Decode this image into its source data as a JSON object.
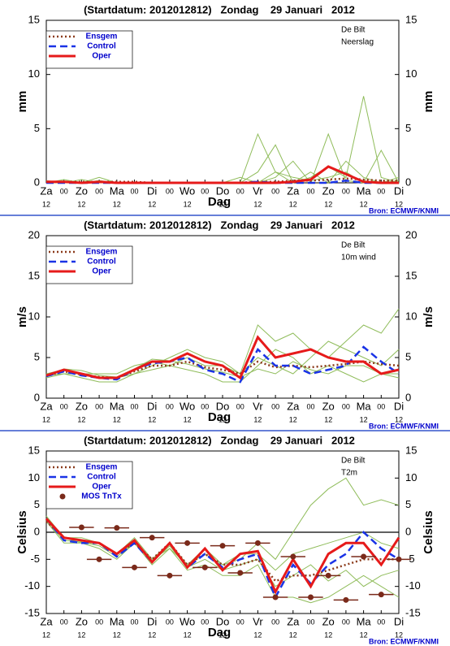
{
  "chart_data": [
    {
      "type": "line",
      "title": "(Startdatum: 2012012812)   Zondag    29 Januari   2012",
      "location": "De Bilt",
      "variable": "Neerslag",
      "ylabel": "mm",
      "xlabel": "Dag",
      "source": "Bron: ECMWF/KNMI",
      "categories": [
        "Za",
        "00",
        "Zo",
        "00",
        "Ma",
        "00",
        "Di",
        "00",
        "Wo",
        "00",
        "Do",
        "00",
        "Vr",
        "00",
        "Za",
        "00",
        "Zo",
        "00",
        "Ma",
        "00",
        "Di"
      ],
      "sub_labels": [
        "12",
        "12",
        "12",
        "12",
        "12",
        "12",
        "12",
        "12",
        "12",
        "12",
        "12"
      ],
      "ylim": [
        0,
        15
      ],
      "yticks": [
        0,
        5,
        10,
        15
      ],
      "zero_line": false,
      "members": {
        "color": "#8fbc5a",
        "values": [
          [
            0,
            0.3,
            0,
            0.2,
            0,
            0,
            0,
            0,
            0,
            0,
            0,
            0,
            4.5,
            1,
            0.5,
            0.2,
            0.5,
            1,
            0,
            0,
            0.2
          ],
          [
            0,
            0,
            0,
            0.5,
            0,
            0,
            0,
            0,
            0,
            0,
            0,
            0,
            1,
            3.5,
            0,
            0.5,
            1.5,
            0.5,
            8,
            0.5,
            0
          ],
          [
            0,
            0,
            0,
            0,
            0,
            0,
            0,
            0,
            0,
            0,
            0,
            0,
            0,
            0.5,
            2,
            0,
            4.5,
            0.2,
            0,
            3,
            0
          ],
          [
            0.2,
            0,
            0.3,
            0,
            0,
            0,
            0,
            0,
            0,
            0,
            0,
            0.5,
            0,
            1,
            0,
            1,
            0,
            2,
            0.5,
            0,
            0.5
          ]
        ]
      },
      "series": [
        {
          "name": "Ensgem",
          "color": "#8b3a1a",
          "style": "dotted",
          "values": [
            0.1,
            0.1,
            0.1,
            0.1,
            0.1,
            0.1,
            0,
            0,
            0,
            0,
            0,
            0,
            0.1,
            0.1,
            0.2,
            0.2,
            0.3,
            0.4,
            0.3,
            0.2,
            0.2
          ]
        },
        {
          "name": "Control",
          "color": "#1a33e6",
          "style": "dashed",
          "values": [
            0,
            0,
            0,
            0,
            0,
            0,
            0,
            0,
            0,
            0,
            0,
            0,
            0.1,
            0,
            0,
            0,
            0,
            0.2,
            0,
            0,
            0
          ]
        },
        {
          "name": "Oper",
          "color": "#e61a1a",
          "style": "solid",
          "values": [
            0.1,
            0.1,
            0,
            0.1,
            0,
            0,
            0,
            0,
            0,
            0,
            0,
            0,
            0,
            0,
            0.1,
            0.3,
            1.5,
            0.8,
            0.1,
            0,
            0
          ]
        }
      ]
    },
    {
      "type": "line",
      "title": "(Startdatum: 2012012812)   Zondag    29 Januari   2012",
      "location": "De Bilt",
      "variable": "10m wind",
      "ylabel": "m/s",
      "xlabel": "Dag",
      "source": "Bron: ECMWF/KNMI",
      "categories": [
        "Za",
        "00",
        "Zo",
        "00",
        "Ma",
        "00",
        "Di",
        "00",
        "Wo",
        "00",
        "Do",
        "00",
        "Vr",
        "00",
        "Za",
        "00",
        "Zo",
        "00",
        "Ma",
        "00",
        "Di"
      ],
      "sub_labels": [
        "12",
        "12",
        "12",
        "12",
        "12",
        "12",
        "12",
        "12",
        "12",
        "12",
        "12"
      ],
      "ylim": [
        0,
        20
      ],
      "yticks": [
        0,
        5,
        10,
        15,
        20
      ],
      "zero_line": false,
      "members": {
        "color": "#8fbc5a",
        "values": [
          [
            2.5,
            3,
            2.5,
            2,
            2,
            3,
            4,
            5,
            6,
            5,
            4.5,
            3,
            9,
            7,
            8,
            6,
            5,
            7,
            9,
            8,
            11
          ],
          [
            3,
            3.5,
            3,
            3,
            3,
            4,
            4.5,
            4,
            3.5,
            3,
            2,
            2,
            4,
            6,
            5,
            3,
            4,
            3,
            2,
            3,
            2.5
          ],
          [
            2.8,
            3,
            3,
            2.5,
            2.5,
            3,
            3.5,
            4,
            5,
            4,
            4,
            3,
            5,
            4,
            3,
            5,
            7,
            6,
            5,
            4,
            6
          ],
          [
            2.6,
            3.6,
            3.4,
            2.8,
            2.6,
            3.6,
            4.8,
            4.6,
            4.2,
            3.6,
            3.2,
            2.6,
            3.6,
            3,
            4.5,
            3.5,
            3,
            4,
            4,
            3,
            3
          ]
        ]
      },
      "series": [
        {
          "name": "Ensgem",
          "color": "#8b3a1a",
          "style": "dotted",
          "values": [
            2.7,
            3.3,
            2.9,
            2.6,
            2.5,
            3.3,
            4,
            4,
            4.5,
            3.8,
            3.5,
            3,
            4.5,
            3.8,
            4,
            3.8,
            4,
            4.2,
            4.5,
            4.2,
            4
          ]
        },
        {
          "name": "Control",
          "color": "#1a33e6",
          "style": "dashed",
          "values": [
            2.7,
            3.3,
            2.8,
            2.5,
            2.3,
            3.5,
            4.3,
            4.5,
            5,
            3.5,
            3,
            2,
            6,
            4,
            4,
            3,
            3.5,
            4,
            6.3,
            4.5,
            3
          ]
        },
        {
          "name": "Oper",
          "color": "#e61a1a",
          "style": "solid",
          "values": [
            2.8,
            3.5,
            3,
            2.5,
            2.5,
            3.5,
            4.5,
            4.5,
            5.5,
            4.5,
            4,
            2.5,
            7.5,
            5,
            5.5,
            6,
            5,
            4.5,
            4.5,
            3,
            3.5
          ]
        }
      ]
    },
    {
      "type": "line",
      "title": "(Startdatum: 2012012812)   Zondag    29 Januari   2012",
      "location": "De Bilt",
      "variable": "T2m",
      "ylabel": "Celsius",
      "xlabel": "Dag",
      "source": "Bron: ECMWF/KNMI",
      "categories": [
        "Za",
        "00",
        "Zo",
        "00",
        "Ma",
        "00",
        "Di",
        "00",
        "Wo",
        "00",
        "Do",
        "00",
        "Vr",
        "00",
        "Za",
        "00",
        "Zo",
        "00",
        "Ma",
        "00",
        "Di"
      ],
      "sub_labels": [
        "12",
        "12",
        "12",
        "12",
        "12",
        "12",
        "12",
        "12",
        "12",
        "12",
        "12"
      ],
      "ylim": [
        -15,
        15
      ],
      "yticks": [
        -15,
        -10,
        -5,
        0,
        5,
        10,
        15
      ],
      "zero_line": true,
      "members": {
        "color": "#8fbc5a",
        "values": [
          [
            3,
            -1,
            -2,
            -2,
            -4,
            -2,
            -5,
            -3,
            -6,
            -4,
            -6,
            -5,
            -2,
            -5,
            0,
            5,
            8,
            10,
            5,
            6,
            5
          ],
          [
            2,
            -2,
            -2,
            -3,
            -5,
            -2,
            -6,
            -3,
            -7,
            -6,
            -8,
            -8,
            -6,
            -12,
            -12,
            -13,
            -12,
            -10,
            -8,
            -10,
            -12
          ],
          [
            2.5,
            -1,
            -1,
            -2,
            -4,
            -1,
            -5,
            -2,
            -6,
            -3,
            -6,
            -4,
            -4,
            -7,
            -4,
            -3,
            -2,
            -1,
            0,
            -2,
            -3
          ],
          [
            2,
            -1.5,
            -1.8,
            -2.5,
            -4.5,
            -2,
            -5.5,
            -2.5,
            -6.5,
            -5,
            -7,
            -6,
            -5,
            -10,
            -8,
            -6,
            -9,
            -7,
            -10,
            -8,
            -7
          ]
        ]
      },
      "series": [
        {
          "name": "Ensgem",
          "color": "#8b3a1a",
          "style": "dotted",
          "values": [
            2,
            -1,
            -1.5,
            -2,
            -4,
            -2,
            -5,
            -2,
            -6,
            -4,
            -6,
            -6,
            -5,
            -9,
            -8,
            -8,
            -7,
            -6,
            -5,
            -5,
            -5
          ]
        },
        {
          "name": "Control",
          "color": "#1a33e6",
          "style": "dashed",
          "values": [
            2.5,
            -1.5,
            -2,
            -2,
            -4.5,
            -2,
            -5.5,
            -2,
            -6.5,
            -4,
            -6.5,
            -5,
            -4,
            -12,
            -6,
            -9.5,
            -6,
            -4,
            0,
            -3,
            -5
          ]
        },
        {
          "name": "Oper",
          "color": "#e61a1a",
          "style": "solid",
          "values": [
            2.5,
            -1,
            -1.5,
            -2,
            -4,
            -1.5,
            -5.5,
            -2,
            -6.5,
            -3,
            -7,
            -4,
            -3.5,
            -11,
            -5,
            -10,
            -4,
            -2,
            -2,
            -6,
            -1
          ]
        }
      ],
      "mos": {
        "name": "MOS TnTx",
        "color": "#7a2a1a",
        "x": [
          2,
          3,
          4,
          5,
          6,
          7,
          8,
          9,
          10,
          11,
          12,
          13,
          14,
          15,
          16,
          17,
          18,
          19,
          20
        ],
        "values": [
          0.9,
          -5,
          0.8,
          -6.5,
          -1,
          -8,
          -2,
          -6.5,
          -2.5,
          -7.5,
          -2,
          -12,
          -4.5,
          -12,
          -8,
          -12.5,
          -4.5,
          -11.5,
          -5
        ]
      }
    }
  ]
}
